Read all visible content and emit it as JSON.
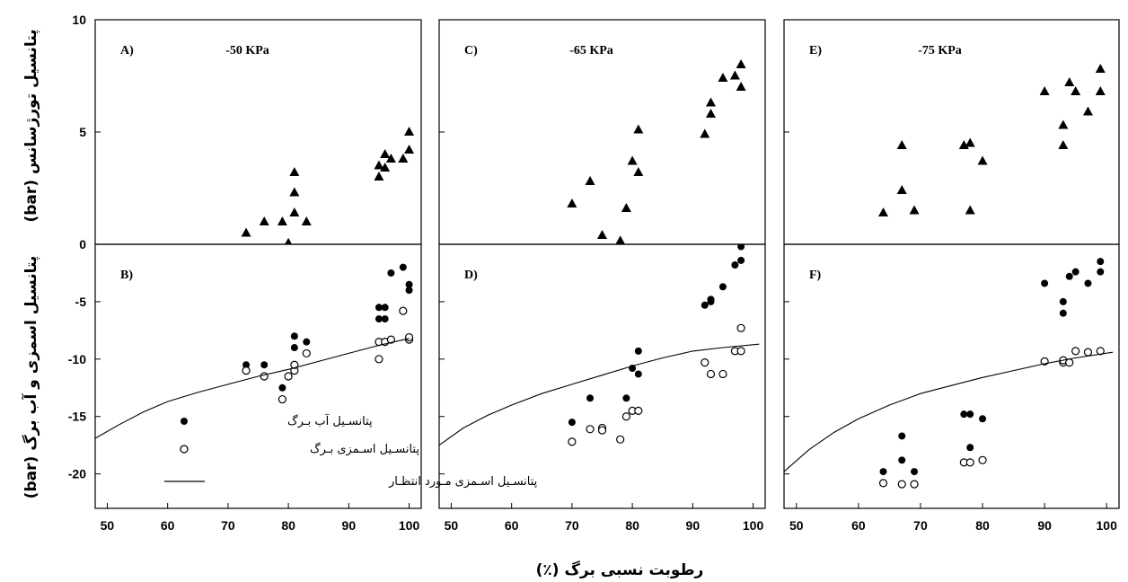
{
  "chart_data": [
    {
      "id": "A",
      "type": "scatter",
      "label": "A)",
      "title": "-50 KPa",
      "xlim": [
        48,
        102
      ],
      "ylim": [
        0,
        10
      ],
      "series": [
        {
          "marker": "filled-triangle",
          "points": [
            [
              73,
              0.5
            ],
            [
              76,
              1.0
            ],
            [
              79,
              1.0
            ],
            [
              80,
              0.05
            ],
            [
              81,
              3.2
            ],
            [
              81,
              2.3
            ],
            [
              81,
              1.4
            ],
            [
              83,
              1.0
            ],
            [
              95,
              3.0
            ],
            [
              95,
              3.5
            ],
            [
              96,
              3.4
            ],
            [
              96,
              4.0
            ],
            [
              97,
              3.8
            ],
            [
              99,
              3.8
            ],
            [
              100,
              4.2
            ],
            [
              100,
              5.0
            ]
          ]
        }
      ]
    },
    {
      "id": "C",
      "type": "scatter",
      "label": "C)",
      "title": "-65 KPa",
      "xlim": [
        48,
        102
      ],
      "ylim": [
        0,
        10
      ],
      "series": [
        {
          "marker": "filled-triangle",
          "points": [
            [
              70,
              1.8
            ],
            [
              73,
              2.8
            ],
            [
              75,
              0.4
            ],
            [
              78,
              0.15
            ],
            [
              79,
              1.6
            ],
            [
              80,
              3.7
            ],
            [
              81,
              5.1
            ],
            [
              81,
              3.2
            ],
            [
              92,
              4.9
            ],
            [
              93,
              5.8
            ],
            [
              93,
              6.3
            ],
            [
              95,
              7.4
            ],
            [
              97,
              7.5
            ],
            [
              98,
              8.0
            ],
            [
              98,
              7.0
            ]
          ]
        }
      ]
    },
    {
      "id": "E",
      "type": "scatter",
      "label": "E)",
      "title": "-75 KPa",
      "xlim": [
        48,
        102
      ],
      "ylim": [
        0,
        10
      ],
      "series": [
        {
          "marker": "filled-triangle",
          "points": [
            [
              64,
              1.4
            ],
            [
              67,
              4.4
            ],
            [
              67,
              2.4
            ],
            [
              69,
              1.5
            ],
            [
              77,
              4.4
            ],
            [
              78,
              4.5
            ],
            [
              78,
              1.5
            ],
            [
              80,
              3.7
            ],
            [
              90,
              6.8
            ],
            [
              93,
              5.3
            ],
            [
              93,
              4.4
            ],
            [
              94,
              7.2
            ],
            [
              95,
              6.8
            ],
            [
              97,
              5.9
            ],
            [
              99,
              7.8
            ],
            [
              99,
              6.8
            ]
          ]
        }
      ]
    },
    {
      "id": "B",
      "type": "scatter",
      "label": "B)",
      "title": "",
      "xlim": [
        48,
        102
      ],
      "ylim": [
        -23,
        0
      ],
      "series": [
        {
          "name": "پتانسـیل آب بـرگ",
          "marker": "filled-circle",
          "points": [
            [
              73,
              -10.5
            ],
            [
              76,
              -10.5
            ],
            [
              79,
              -12.5
            ],
            [
              81,
              -8.0
            ],
            [
              81,
              -9.0
            ],
            [
              83,
              -8.5
            ],
            [
              95,
              -5.5
            ],
            [
              95,
              -6.5
            ],
            [
              96,
              -5.5
            ],
            [
              96,
              -6.5
            ],
            [
              97,
              -2.5
            ],
            [
              99,
              -2.0
            ],
            [
              100,
              -3.5
            ],
            [
              100,
              -4.0
            ]
          ]
        },
        {
          "name": "پتانسـیل اسـمزی بـرگ",
          "marker": "open-circle",
          "points": [
            [
              73,
              -11.0
            ],
            [
              76,
              -11.5
            ],
            [
              79,
              -13.5
            ],
            [
              80,
              -11.5
            ],
            [
              81,
              -11.0
            ],
            [
              81,
              -10.5
            ],
            [
              83,
              -9.5
            ],
            [
              95,
              -10.0
            ],
            [
              95,
              -8.5
            ],
            [
              96,
              -8.5
            ],
            [
              97,
              -8.3
            ],
            [
              99,
              -5.8
            ],
            [
              100,
              -8.3
            ],
            [
              100,
              -8.1
            ]
          ]
        },
        {
          "name": "پتانسـیل اسـمزی مـورد انتظـار",
          "marker": "line",
          "points": [
            [
              48,
              -16.9
            ],
            [
              52,
              -15.7
            ],
            [
              56,
              -14.6
            ],
            [
              60,
              -13.7
            ],
            [
              65,
              -12.9
            ],
            [
              70,
              -12.2
            ],
            [
              75,
              -11.5
            ],
            [
              80,
              -10.9
            ],
            [
              85,
              -10.2
            ],
            [
              90,
              -9.5
            ],
            [
              95,
              -8.8
            ],
            [
              100,
              -8.2
            ]
          ]
        }
      ]
    },
    {
      "id": "D",
      "type": "scatter",
      "label": "D)",
      "title": "",
      "xlim": [
        48,
        102
      ],
      "ylim": [
        -23,
        0
      ],
      "series": [
        {
          "name": "پتانسـیل آب بـرگ",
          "marker": "filled-circle",
          "points": [
            [
              70,
              -15.5
            ],
            [
              73,
              -13.4
            ],
            [
              79,
              -13.4
            ],
            [
              80,
              -10.8
            ],
            [
              81,
              -9.3
            ],
            [
              81,
              -11.3
            ],
            [
              92,
              -5.3
            ],
            [
              93,
              -5.0
            ],
            [
              93,
              -4.8
            ],
            [
              95,
              -3.7
            ],
            [
              97,
              -1.8
            ],
            [
              98,
              -1.4
            ],
            [
              98,
              -0.2
            ]
          ]
        },
        {
          "name": "پتانسـیل اسـمزی بـرگ",
          "marker": "open-circle",
          "points": [
            [
              70,
              -17.2
            ],
            [
              73,
              -16.1
            ],
            [
              75,
              -16.0
            ],
            [
              75,
              -16.2
            ],
            [
              78,
              -17.0
            ],
            [
              79,
              -15.0
            ],
            [
              80,
              -14.5
            ],
            [
              81,
              -14.5
            ],
            [
              92,
              -10.3
            ],
            [
              93,
              -11.3
            ],
            [
              95,
              -11.3
            ],
            [
              97,
              -9.3
            ],
            [
              98,
              -9.3
            ],
            [
              98,
              -7.3
            ]
          ]
        },
        {
          "name": "پتانسـیل اسـمزی مـورد انتظـار",
          "marker": "line",
          "points": [
            [
              48,
              -17.5
            ],
            [
              52,
              -16.0
            ],
            [
              56,
              -14.9
            ],
            [
              60,
              -14.0
            ],
            [
              65,
              -13.0
            ],
            [
              70,
              -12.2
            ],
            [
              75,
              -11.4
            ],
            [
              80,
              -10.6
            ],
            [
              85,
              -9.9
            ],
            [
              90,
              -9.3
            ],
            [
              95,
              -9.0
            ],
            [
              101,
              -8.7
            ]
          ]
        }
      ]
    },
    {
      "id": "F",
      "type": "scatter",
      "label": "F)",
      "title": "",
      "xlim": [
        48,
        102
      ],
      "ylim": [
        -23,
        0
      ],
      "series": [
        {
          "name": "پتانسـیل آب بـرگ",
          "marker": "filled-circle",
          "points": [
            [
              64,
              -19.8
            ],
            [
              67,
              -16.7
            ],
            [
              67,
              -18.8
            ],
            [
              69,
              -19.8
            ],
            [
              77,
              -14.8
            ],
            [
              78,
              -14.8
            ],
            [
              78,
              -17.7
            ],
            [
              80,
              -15.2
            ],
            [
              90,
              -3.4
            ],
            [
              93,
              -5.0
            ],
            [
              93,
              -6.0
            ],
            [
              94,
              -2.8
            ],
            [
              95,
              -2.4
            ],
            [
              97,
              -3.4
            ],
            [
              99,
              -1.5
            ],
            [
              99,
              -2.4
            ]
          ]
        },
        {
          "name": "پتانسـیل اسـمزی بـرگ",
          "marker": "open-circle",
          "points": [
            [
              64,
              -20.8
            ],
            [
              67,
              -20.9
            ],
            [
              69,
              -20.9
            ],
            [
              77,
              -19.0
            ],
            [
              78,
              -19.0
            ],
            [
              80,
              -18.8
            ],
            [
              90,
              -10.2
            ],
            [
              93,
              -10.3
            ],
            [
              93,
              -10.1
            ],
            [
              94,
              -10.3
            ],
            [
              95,
              -9.3
            ],
            [
              97,
              -9.4
            ],
            [
              99,
              -9.3
            ]
          ]
        },
        {
          "name": "پتانسـیل اسـمزی مـورد انتظـار",
          "marker": "line",
          "points": [
            [
              48,
              -19.8
            ],
            [
              52,
              -17.9
            ],
            [
              56,
              -16.4
            ],
            [
              60,
              -15.2
            ],
            [
              65,
              -14.0
            ],
            [
              70,
              -13.0
            ],
            [
              75,
              -12.3
            ],
            [
              80,
              -11.6
            ],
            [
              85,
              -11.0
            ],
            [
              90,
              -10.4
            ],
            [
              95,
              -9.9
            ],
            [
              101,
              -9.4
            ]
          ]
        }
      ]
    }
  ],
  "axes": {
    "top_yticks": [
      "0",
      "5",
      "10"
    ],
    "bottom_yticks": [
      "-5",
      "-10",
      "-15",
      "-20"
    ],
    "xticks": [
      "50",
      "60",
      "70",
      "80",
      "90",
      "100"
    ],
    "xlabel": "رطوبت نسبی برگ (٪)",
    "ylabel_top": "پتانسیل تورژسانس (bar)",
    "ylabel_bottom": "پتانسیل اسمزی و آب برگ (bar)"
  },
  "legend": {
    "items": [
      "پتانسـیل آب بـرگ",
      "پتانسـیل اسـمزی بـرگ",
      "پتانسـیل اسـمزی مـورد انتظـار"
    ]
  }
}
